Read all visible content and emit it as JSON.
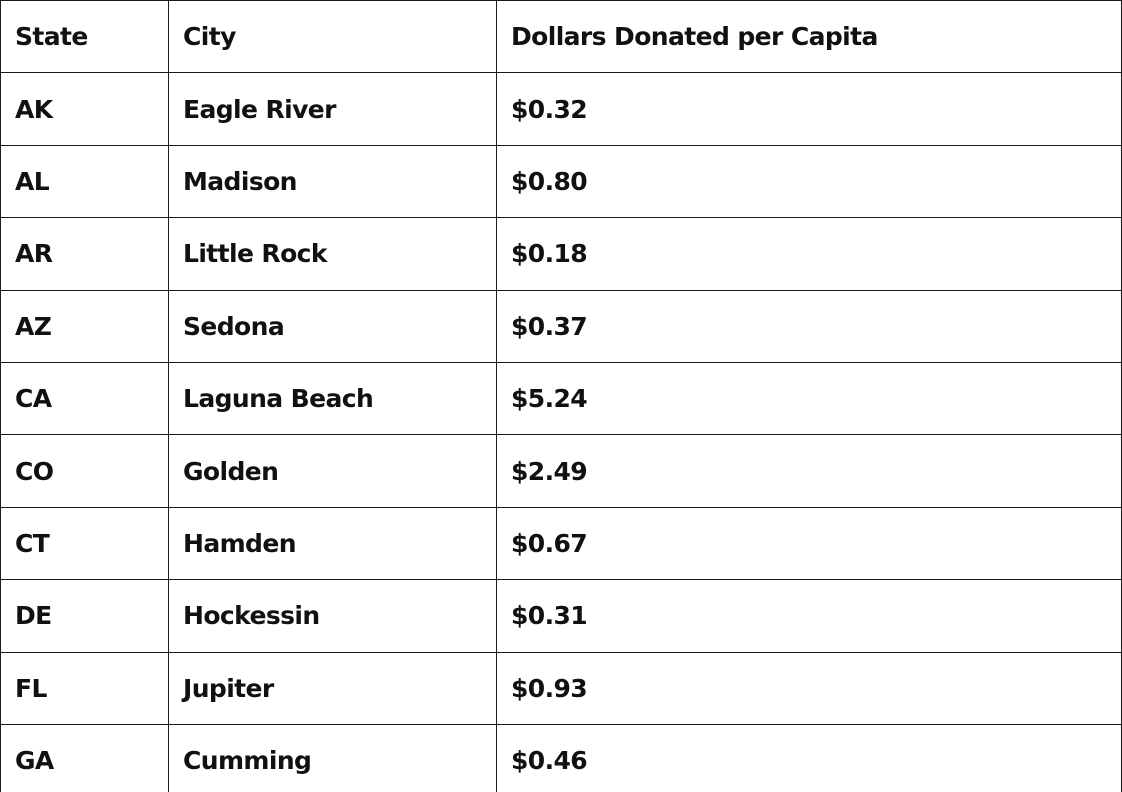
{
  "table": {
    "headers": [
      "State",
      "City",
      "Dollars Donated per Capita"
    ],
    "rows": [
      [
        "AK",
        "Eagle River",
        "$0.32"
      ],
      [
        "AL",
        "Madison",
        "$0.80"
      ],
      [
        "AR",
        "Little Rock",
        "$0.18"
      ],
      [
        "AZ",
        "Sedona",
        "$0.37"
      ],
      [
        "CA",
        "Laguna Beach",
        "$5.24"
      ],
      [
        "CO",
        "Golden",
        "$2.49"
      ],
      [
        "CT",
        "Hamden",
        "$0.67"
      ],
      [
        "DE",
        "Hockessin",
        "$0.31"
      ],
      [
        "FL",
        "Jupiter",
        "$0.93"
      ],
      [
        "GA",
        "Cumming",
        "$0.46"
      ]
    ]
  }
}
